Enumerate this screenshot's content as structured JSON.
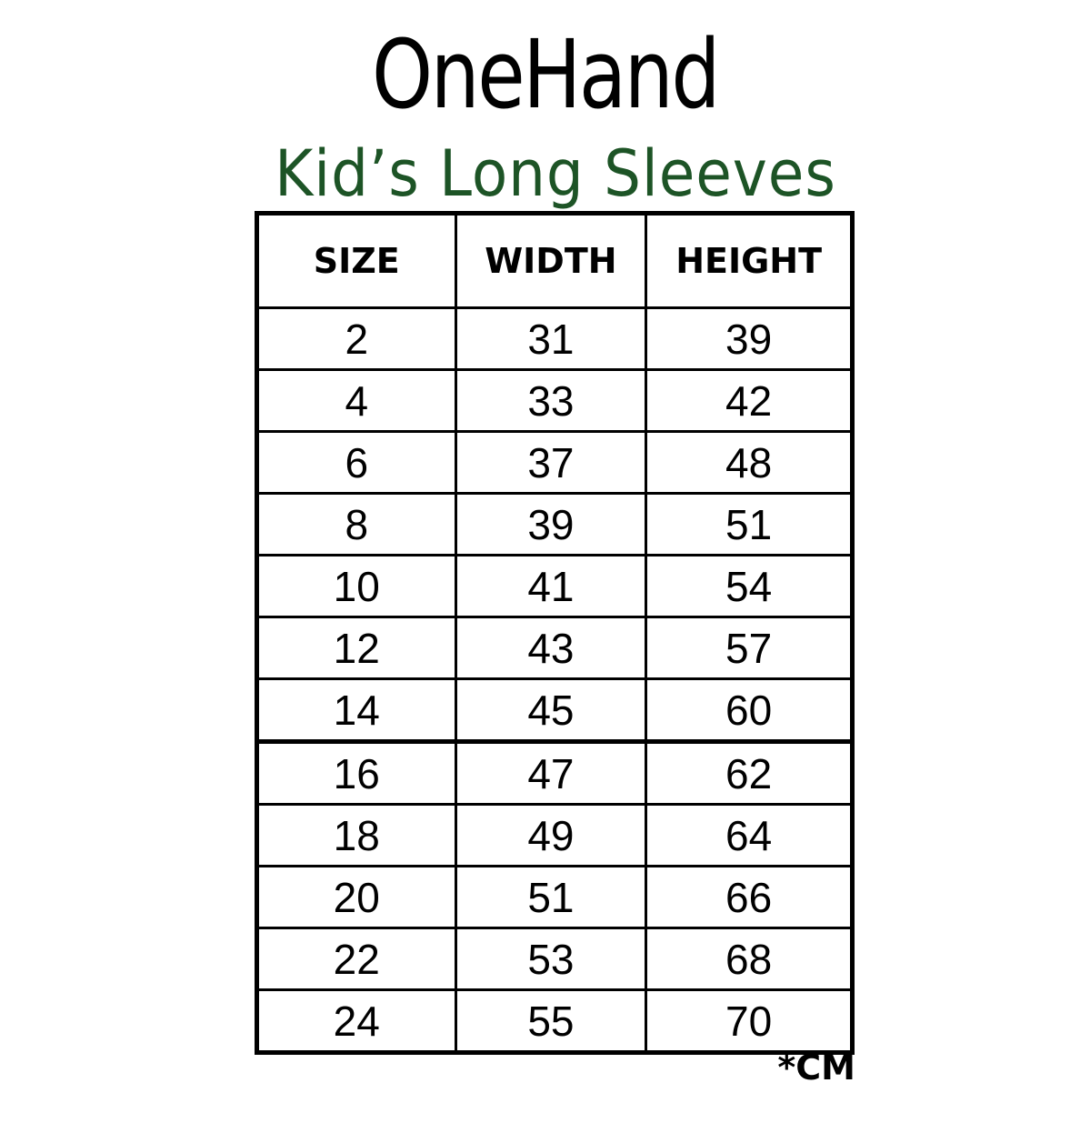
{
  "brand": "OneHand",
  "subtitle": "Kid’s Long Sleeves",
  "colors": {
    "subtitle": "#1d5426",
    "text": "#000000"
  },
  "table": {
    "headers": [
      "SIZE",
      "WIDTH",
      "HEIGHT"
    ],
    "rows": [
      [
        "2",
        "31",
        "39"
      ],
      [
        "4",
        "33",
        "42"
      ],
      [
        "6",
        "37",
        "48"
      ],
      [
        "8",
        "39",
        "51"
      ],
      [
        "10",
        "41",
        "54"
      ],
      [
        "12",
        "43",
        "57"
      ],
      [
        "14",
        "45",
        "60"
      ],
      [
        "16",
        "47",
        "62"
      ],
      [
        "18",
        "49",
        "64"
      ],
      [
        "20",
        "51",
        "66"
      ],
      [
        "22",
        "53",
        "68"
      ],
      [
        "24",
        "55",
        "70"
      ]
    ]
  },
  "unit_note": "*CM"
}
